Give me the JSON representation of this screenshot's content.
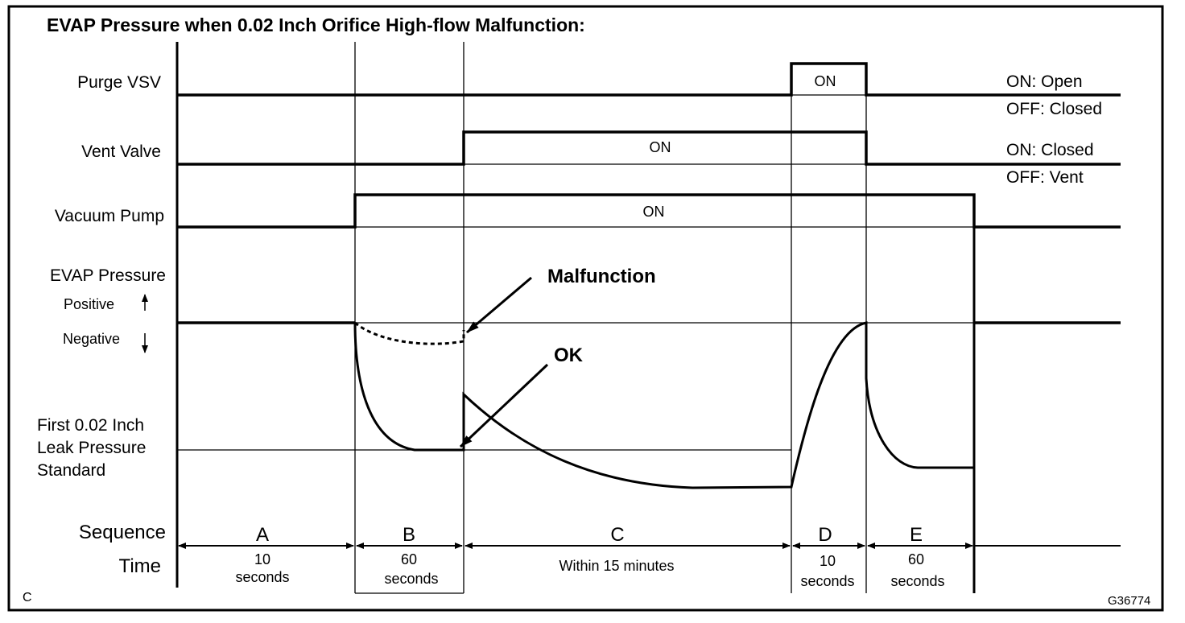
{
  "title": "EVAP Pressure when 0.02 Inch Orifice High-flow Malfunction:",
  "rows": {
    "purge_vsv": {
      "label": "Purge VSV",
      "on": "ON",
      "legend_on": "ON: Open",
      "legend_off": "OFF: Closed"
    },
    "vent_valve": {
      "label": "Vent Valve",
      "on": "ON",
      "legend_on": "ON: Closed",
      "legend_off": "OFF: Vent"
    },
    "vacuum_pump": {
      "label": "Vacuum Pump",
      "on": "ON"
    },
    "evap_pressure": {
      "label": "EVAP Pressure",
      "positive": "Positive",
      "negative": "Negative",
      "standard_line1": "First 0.02 Inch",
      "standard_line2": "Leak Pressure",
      "standard_line3": "Standard"
    }
  },
  "annotations": {
    "malfunction": "Malfunction",
    "ok": "OK"
  },
  "sequence": {
    "label": "Sequence",
    "time_label": "Time",
    "steps": [
      {
        "id": "A",
        "time1": "10",
        "time2": "seconds"
      },
      {
        "id": "B",
        "time1": "60",
        "time2": "seconds"
      },
      {
        "id": "C",
        "time1": "Within 15 minutes",
        "time2": ""
      },
      {
        "id": "D",
        "time1": "10",
        "time2": "seconds"
      },
      {
        "id": "E",
        "time1": "60",
        "time2": "seconds"
      }
    ]
  },
  "corner_left": "C",
  "figure_code": "G36774"
}
